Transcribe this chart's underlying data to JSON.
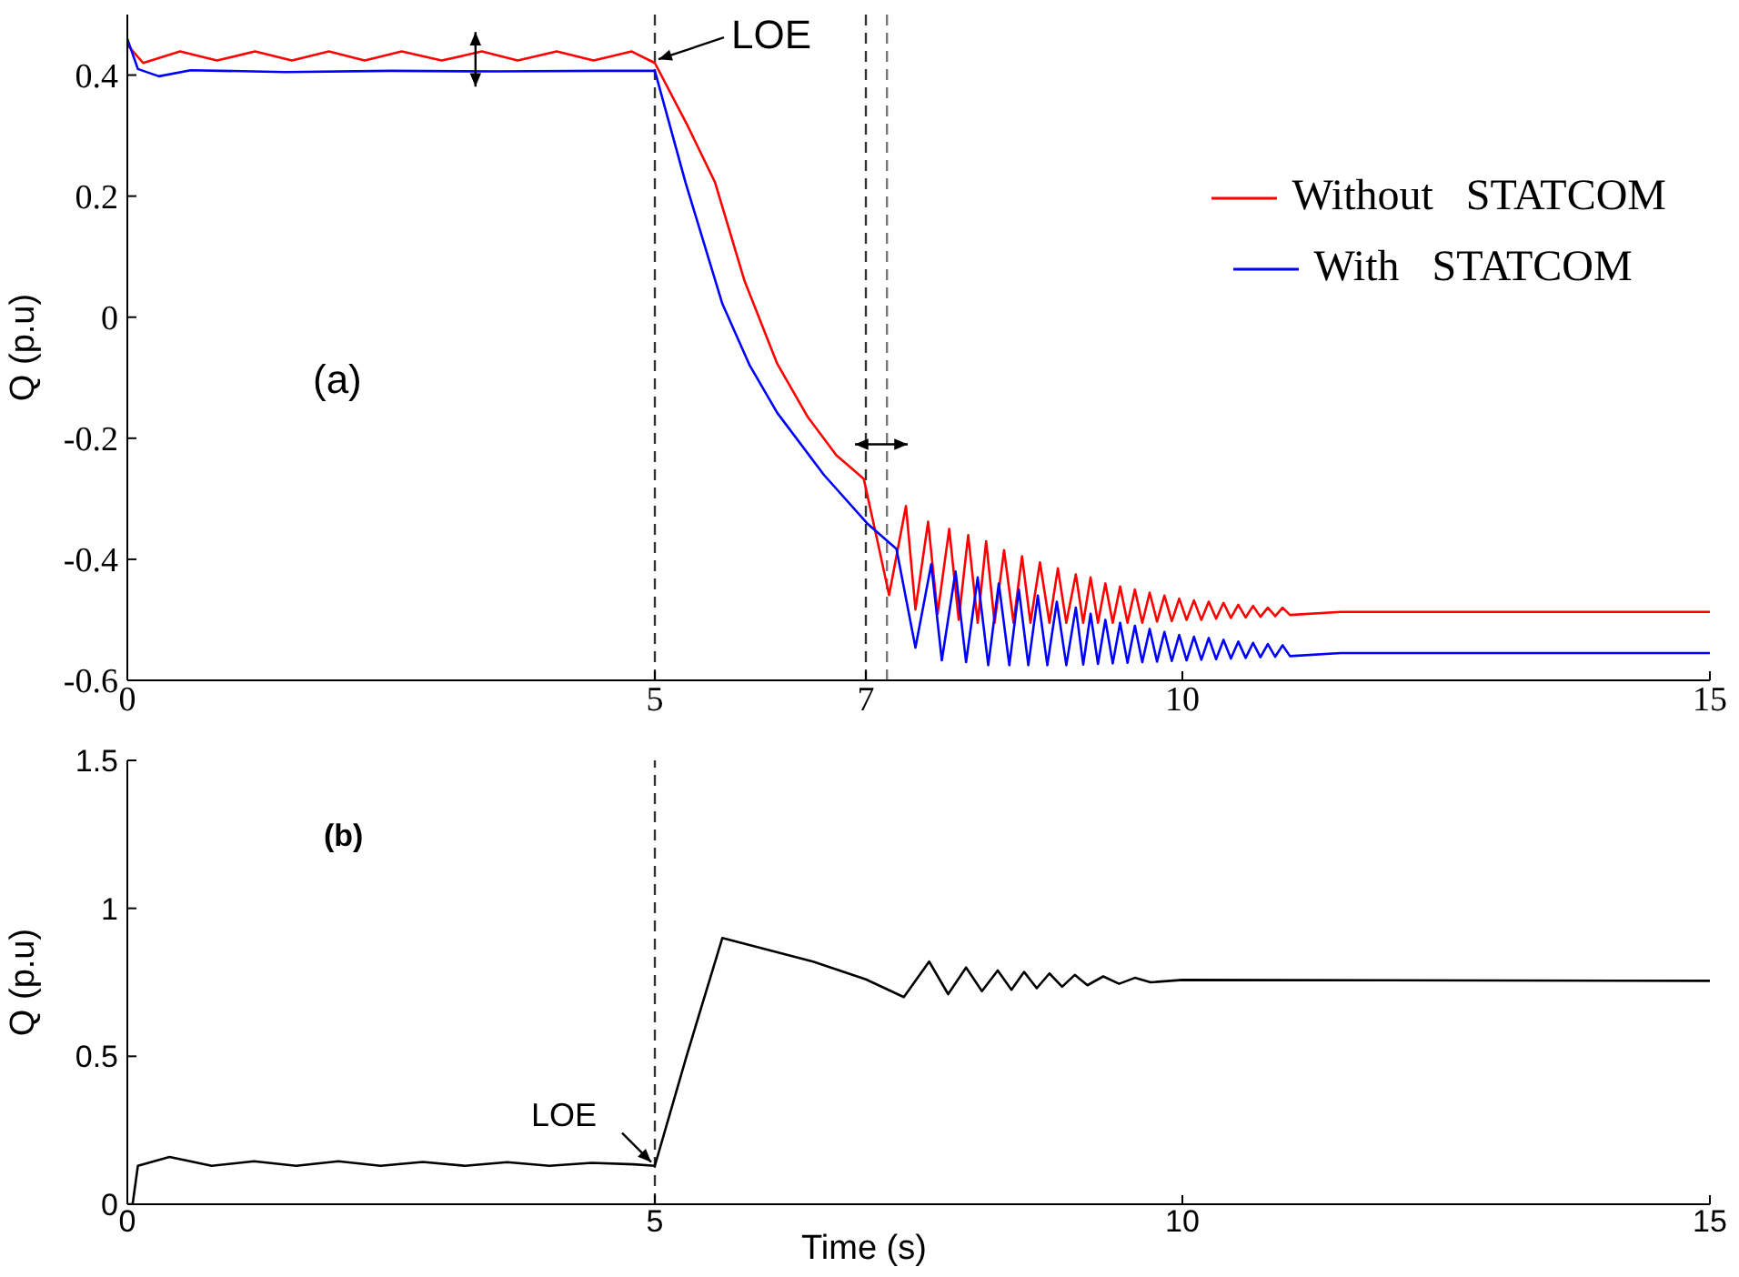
{
  "chart_data": [
    {
      "type": "line",
      "ylabel": "Q (p.u)",
      "xlim": [
        0,
        15
      ],
      "xticks": [
        0,
        5,
        7,
        10,
        15
      ],
      "ylim": [
        -0.6,
        0.5
      ],
      "yticks": [
        -0.6,
        -0.4,
        -0.2,
        0,
        0.2,
        0.4
      ],
      "legend": "top right",
      "grid": false,
      "series": [
        {
          "name": "Without   STATCOM",
          "color": "#ff0000",
          "x": [
            0,
            0.15,
            0.5,
            0.85,
            1.21,
            1.56,
            1.91,
            2.25,
            2.6,
            2.98,
            3.36,
            3.7,
            4.07,
            4.42,
            4.78,
            5.0,
            5.3,
            5.57,
            5.85,
            6.16,
            6.45,
            6.72,
            6.98,
            7.12,
            7.22,
            7.38,
            7.47,
            7.59,
            7.68,
            7.79,
            7.88,
            7.97,
            8.06,
            8.14,
            8.22,
            8.31,
            8.4,
            8.48,
            8.56,
            8.65,
            8.74,
            8.82,
            8.9,
            8.99,
            9.06,
            9.13,
            9.2,
            9.27,
            9.34,
            9.41,
            9.48,
            9.55,
            9.62,
            9.69,
            9.76,
            9.83,
            9.9,
            9.97,
            10.04,
            10.11,
            10.18,
            10.25,
            10.32,
            10.39,
            10.46,
            10.53,
            10.6,
            10.67,
            10.74,
            10.81,
            10.88,
            10.95,
            11.02,
            11.5,
            15
          ],
          "values": [
            0.45,
            0.42,
            0.439,
            0.424,
            0.439,
            0.424,
            0.439,
            0.424,
            0.439,
            0.424,
            0.439,
            0.424,
            0.439,
            0.424,
            0.439,
            0.42,
            0.32,
            0.223,
            0.06,
            -0.077,
            -0.165,
            -0.228,
            -0.267,
            -0.378,
            -0.459,
            -0.312,
            -0.483,
            -0.338,
            -0.49,
            -0.35,
            -0.5,
            -0.36,
            -0.505,
            -0.37,
            -0.505,
            -0.385,
            -0.505,
            -0.395,
            -0.505,
            -0.405,
            -0.505,
            -0.415,
            -0.505,
            -0.425,
            -0.505,
            -0.43,
            -0.505,
            -0.44,
            -0.505,
            -0.445,
            -0.505,
            -0.45,
            -0.505,
            -0.455,
            -0.503,
            -0.46,
            -0.502,
            -0.465,
            -0.5,
            -0.468,
            -0.5,
            -0.47,
            -0.498,
            -0.472,
            -0.497,
            -0.475,
            -0.496,
            -0.477,
            -0.495,
            -0.48,
            -0.494,
            -0.48,
            -0.492,
            -0.487,
            -0.487
          ]
        },
        {
          "name": "With   STATCOM",
          "color": "#0000ff",
          "x": [
            0,
            0.1,
            0.3,
            0.6,
            1.5,
            2.5,
            3.5,
            4.5,
            5.0,
            5.29,
            5.64,
            5.9,
            6.16,
            6.6,
            7.02,
            7.29,
            7.47,
            7.62,
            7.72,
            7.85,
            7.95,
            8.06,
            8.16,
            8.26,
            8.36,
            8.45,
            8.54,
            8.63,
            8.72,
            8.81,
            8.9,
            8.99,
            9.06,
            9.13,
            9.2,
            9.27,
            9.34,
            9.41,
            9.48,
            9.55,
            9.62,
            9.69,
            9.76,
            9.83,
            9.9,
            9.97,
            10.04,
            10.11,
            10.18,
            10.25,
            10.32,
            10.39,
            10.46,
            10.53,
            10.6,
            10.67,
            10.74,
            10.81,
            10.88,
            10.95,
            11.02,
            11.5,
            15
          ],
          "values": [
            0.46,
            0.41,
            0.398,
            0.408,
            0.405,
            0.407,
            0.406,
            0.407,
            0.407,
            0.223,
            0.022,
            -0.08,
            -0.158,
            -0.26,
            -0.342,
            -0.383,
            -0.546,
            -0.408,
            -0.567,
            -0.42,
            -0.57,
            -0.43,
            -0.575,
            -0.44,
            -0.575,
            -0.45,
            -0.575,
            -0.46,
            -0.575,
            -0.47,
            -0.575,
            -0.48,
            -0.574,
            -0.49,
            -0.573,
            -0.5,
            -0.572,
            -0.505,
            -0.571,
            -0.51,
            -0.57,
            -0.515,
            -0.569,
            -0.52,
            -0.568,
            -0.525,
            -0.567,
            -0.528,
            -0.566,
            -0.53,
            -0.565,
            -0.533,
            -0.564,
            -0.536,
            -0.563,
            -0.538,
            -0.562,
            -0.54,
            -0.561,
            -0.542,
            -0.56,
            -0.555,
            -0.555
          ]
        }
      ],
      "ref_lines": [
        {
          "axis": "x",
          "value": 5,
          "color": "#333333",
          "line_style": "dashed"
        },
        {
          "axis": "x",
          "value": 7,
          "color": "#333333",
          "line_style": "dashed"
        },
        {
          "axis": "x",
          "value": 7.2,
          "color": "#777777",
          "line_style": "dashed"
        }
      ],
      "annotations": [
        {
          "text": "LOE",
          "x": 5,
          "y": 0.42
        },
        "(a)"
      ]
    },
    {
      "type": "line",
      "xlabel": "Time (s)",
      "ylabel": "Q (p.u)",
      "xlim": [
        0,
        15
      ],
      "xticks": [
        0,
        5,
        10,
        15
      ],
      "ylim": [
        0,
        1.5
      ],
      "yticks": [
        0,
        0.5,
        1,
        1.5
      ],
      "grid": false,
      "series": [
        {
          "color": "#000000",
          "x": [
            0,
            0.05,
            0.1,
            0.4,
            0.8,
            1.2,
            1.6,
            2.0,
            2.4,
            2.8,
            3.2,
            3.6,
            4.0,
            4.4,
            4.8,
            5.0,
            5.3,
            5.64,
            6.5,
            7.0,
            7.36,
            7.6,
            7.78,
            7.95,
            8.1,
            8.25,
            8.38,
            8.5,
            8.62,
            8.74,
            8.86,
            8.98,
            9.1,
            9.25,
            9.4,
            9.55,
            9.7,
            10,
            15
          ],
          "values": [
            0,
            0,
            0.13,
            0.16,
            0.13,
            0.145,
            0.13,
            0.145,
            0.13,
            0.143,
            0.13,
            0.142,
            0.13,
            0.14,
            0.135,
            0.13,
            0.5,
            0.9,
            0.82,
            0.76,
            0.7,
            0.82,
            0.71,
            0.8,
            0.72,
            0.79,
            0.725,
            0.785,
            0.73,
            0.78,
            0.735,
            0.775,
            0.74,
            0.77,
            0.745,
            0.765,
            0.75,
            0.758,
            0.755
          ]
        }
      ],
      "ref_lines": [
        {
          "axis": "x",
          "value": 5,
          "color": "#333333",
          "line_style": "dashed"
        }
      ],
      "annotations": [
        {
          "text": "LOE",
          "x": 5,
          "y": 0.13
        },
        "(b)"
      ]
    }
  ]
}
